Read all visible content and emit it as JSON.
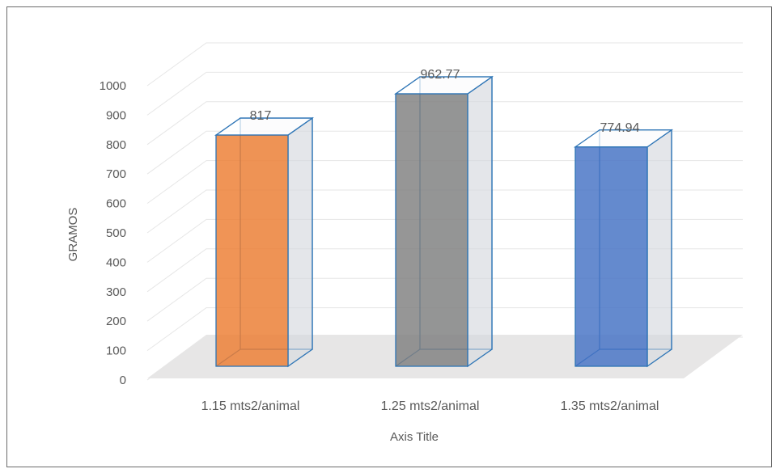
{
  "chart_data": {
    "type": "bar",
    "categories": [
      "1.15 mts2/animal",
      "1.25 mts2/animal",
      "1.35 mts2/animal"
    ],
    "values": [
      817,
      962.77,
      774.94
    ],
    "data_labels": [
      "817",
      "962.77",
      "774.94"
    ],
    "ylabel": "GRAMOS",
    "xlabel": "Axis Title",
    "ylim": [
      0,
      1000
    ],
    "yticks": [
      0,
      100,
      200,
      300,
      400,
      500,
      600,
      700,
      800,
      900,
      1000
    ],
    "grid": true,
    "three_d": true,
    "colors": [
      "#ED7D31",
      "#7F7F7F",
      "#4472C4"
    ],
    "edge_color": "#2E75B6"
  }
}
